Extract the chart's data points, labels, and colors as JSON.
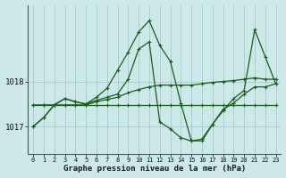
{
  "title": "Graphe pression niveau de la mer (hPa)",
  "bg_color": "#cce8e8",
  "grid_color": "#aacece",
  "line_color": "#1a5c1a",
  "x_labels": [
    "0",
    "1",
    "2",
    "3",
    "4",
    "5",
    "6",
    "7",
    "8",
    "9",
    "10",
    "11",
    "12",
    "13",
    "14",
    "15",
    "16",
    "17",
    "18",
    "19",
    "20",
    "21",
    "22",
    "23"
  ],
  "y_ticks": [
    1017,
    1018
  ],
  "ylim": [
    1016.4,
    1019.7
  ],
  "xlim": [
    -0.5,
    23.5
  ],
  "series": {
    "line1_flat": [
      1017.48,
      1017.48,
      1017.48,
      1017.48,
      1017.48,
      1017.48,
      1017.48,
      1017.48,
      1017.48,
      1017.48,
      1017.48,
      1017.48,
      1017.48,
      1017.48,
      1017.48,
      1017.48,
      1017.48,
      1017.48,
      1017.48,
      1017.48,
      1017.48,
      1017.48,
      1017.48,
      1017.48
    ],
    "line2_rising": [
      1017.48,
      1017.48,
      1017.48,
      1017.48,
      1017.48,
      1017.48,
      1017.55,
      1017.6,
      1017.65,
      1017.75,
      1017.82,
      1017.88,
      1017.92,
      1017.92,
      1017.92,
      1017.92,
      1017.95,
      1017.98,
      1018.0,
      1018.02,
      1018.05,
      1018.08,
      1018.05,
      1018.05
    ],
    "line3_big_peak": [
      1017.0,
      1017.2,
      1017.48,
      1017.62,
      1017.55,
      1017.5,
      1017.65,
      1017.85,
      1018.25,
      1018.65,
      1019.1,
      1019.35,
      1018.8,
      1018.45,
      1017.52,
      1016.68,
      1016.68,
      1017.05,
      1017.35,
      1017.62,
      1017.8,
      1019.15,
      1018.55,
      1017.95
    ],
    "line4_med_peak": [
      1017.0,
      1017.2,
      1017.48,
      1017.62,
      1017.55,
      1017.5,
      1017.58,
      1017.65,
      1017.72,
      1018.05,
      1018.72,
      1018.88,
      1017.1,
      1016.95,
      1016.75,
      1016.68,
      1016.72,
      1017.05,
      1017.38,
      1017.52,
      1017.72,
      1017.88,
      1017.88,
      1017.95
    ]
  }
}
